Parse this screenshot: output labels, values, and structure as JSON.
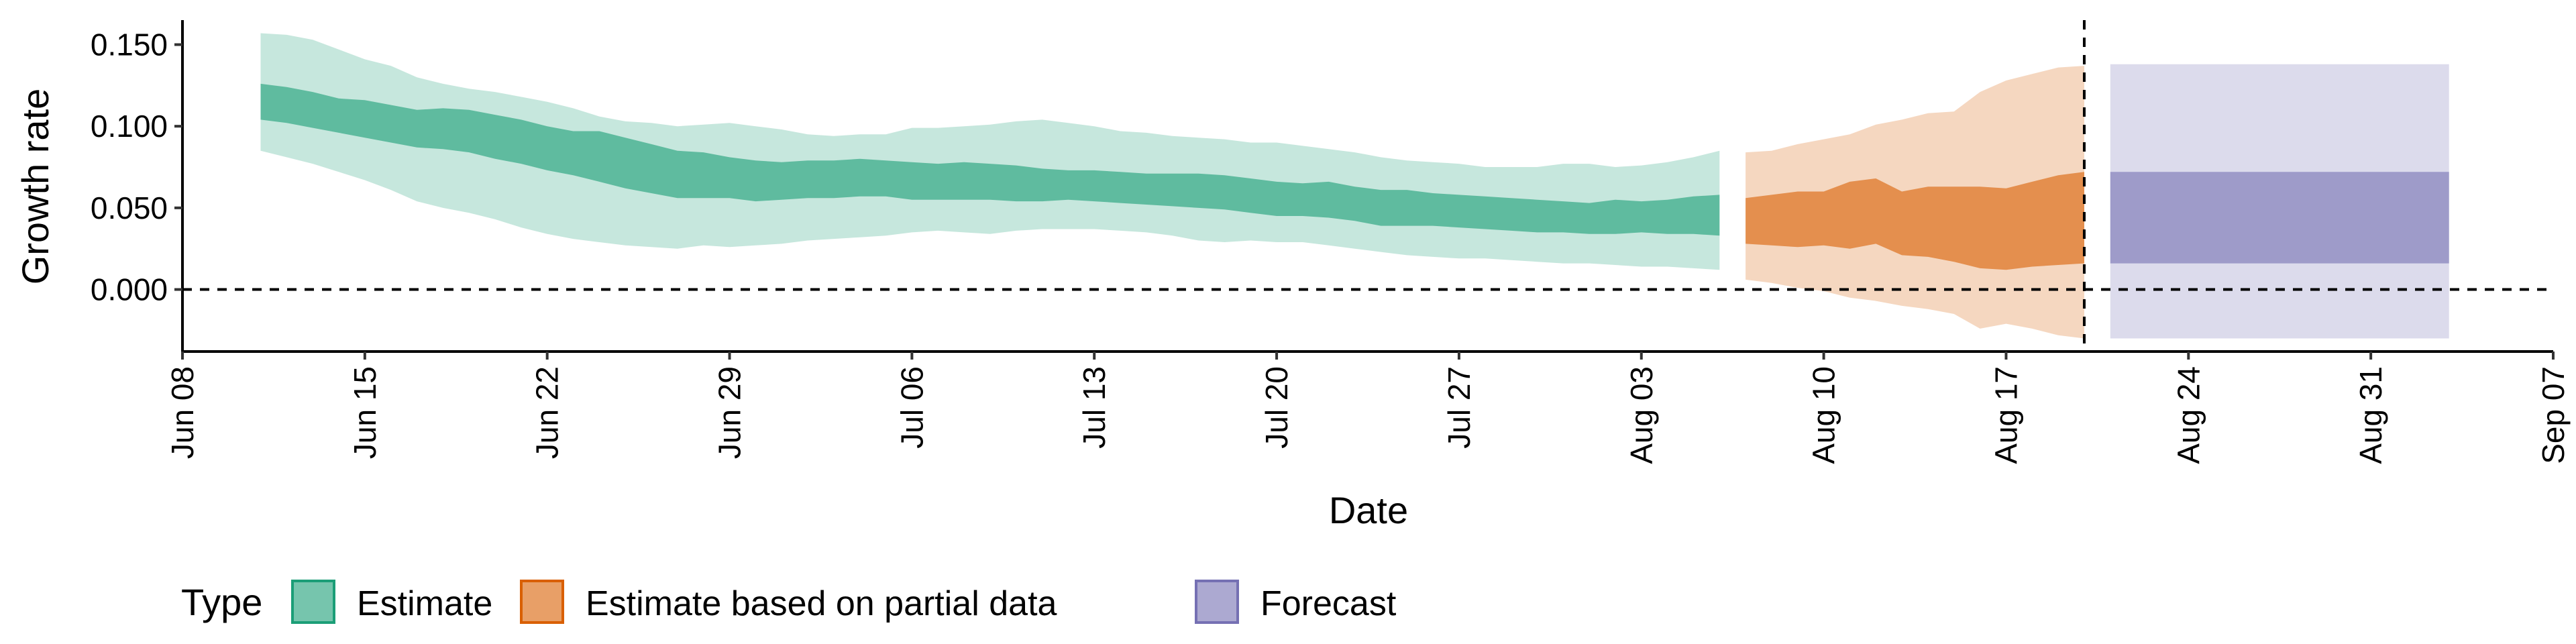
{
  "chart_data": {
    "type": "area",
    "xlabel": "Date",
    "ylabel": "Growth rate",
    "x_ticks": [
      "Jun 08",
      "Jun 15",
      "Jun 22",
      "Jun 29",
      "Jul 06",
      "Jul 13",
      "Jul 20",
      "Jul 27",
      "Aug 03",
      "Aug 10",
      "Aug 17",
      "Aug 24",
      "Aug 31",
      "Sep 07"
    ],
    "y_ticks": [
      "0.000",
      "0.050",
      "0.100",
      "0.150"
    ],
    "xlim_day": [
      0,
      91
    ],
    "ylim": [
      -0.038,
      0.165
    ],
    "reference_lines": {
      "y_zero": 0.0,
      "forecast_date": "Aug 20"
    },
    "legend": {
      "title": "Type",
      "position": "bottom"
    },
    "series": [
      {
        "name": "Estimate",
        "color": "#1b9e77",
        "points": [
          {
            "date": "Jun 11",
            "lower90": 0.085,
            "lower50": 0.104,
            "upper50": 0.126,
            "upper90": 0.157
          },
          {
            "date": "Jun 12",
            "lower90": 0.081,
            "lower50": 0.102,
            "upper50": 0.124,
            "upper90": 0.156
          },
          {
            "date": "Jun 13",
            "lower90": 0.077,
            "lower50": 0.099,
            "upper50": 0.121,
            "upper90": 0.153
          },
          {
            "date": "Jun 14",
            "lower90": 0.072,
            "lower50": 0.096,
            "upper50": 0.117,
            "upper90": 0.147
          },
          {
            "date": "Jun 15",
            "lower90": 0.067,
            "lower50": 0.093,
            "upper50": 0.116,
            "upper90": 0.141
          },
          {
            "date": "Jun 16",
            "lower90": 0.061,
            "lower50": 0.09,
            "upper50": 0.113,
            "upper90": 0.137
          },
          {
            "date": "Jun 17",
            "lower90": 0.054,
            "lower50": 0.087,
            "upper50": 0.11,
            "upper90": 0.13
          },
          {
            "date": "Jun 18",
            "lower90": 0.05,
            "lower50": 0.086,
            "upper50": 0.111,
            "upper90": 0.126
          },
          {
            "date": "Jun 19",
            "lower90": 0.047,
            "lower50": 0.084,
            "upper50": 0.11,
            "upper90": 0.123
          },
          {
            "date": "Jun 20",
            "lower90": 0.043,
            "lower50": 0.08,
            "upper50": 0.107,
            "upper90": 0.121
          },
          {
            "date": "Jun 21",
            "lower90": 0.038,
            "lower50": 0.077,
            "upper50": 0.104,
            "upper90": 0.118
          },
          {
            "date": "Jun 22",
            "lower90": 0.034,
            "lower50": 0.073,
            "upper50": 0.1,
            "upper90": 0.115
          },
          {
            "date": "Jun 23",
            "lower90": 0.031,
            "lower50": 0.07,
            "upper50": 0.097,
            "upper90": 0.111
          },
          {
            "date": "Jun 24",
            "lower90": 0.029,
            "lower50": 0.066,
            "upper50": 0.097,
            "upper90": 0.106
          },
          {
            "date": "Jun 25",
            "lower90": 0.027,
            "lower50": 0.062,
            "upper50": 0.093,
            "upper90": 0.103
          },
          {
            "date": "Jun 26",
            "lower90": 0.026,
            "lower50": 0.059,
            "upper50": 0.089,
            "upper90": 0.102
          },
          {
            "date": "Jun 27",
            "lower90": 0.025,
            "lower50": 0.056,
            "upper50": 0.085,
            "upper90": 0.1
          },
          {
            "date": "Jun 28",
            "lower90": 0.027,
            "lower50": 0.056,
            "upper50": 0.084,
            "upper90": 0.101
          },
          {
            "date": "Jun 29",
            "lower90": 0.026,
            "lower50": 0.056,
            "upper50": 0.081,
            "upper90": 0.102
          },
          {
            "date": "Jun 30",
            "lower90": 0.027,
            "lower50": 0.054,
            "upper50": 0.079,
            "upper90": 0.1
          },
          {
            "date": "Jul 01",
            "lower90": 0.028,
            "lower50": 0.055,
            "upper50": 0.078,
            "upper90": 0.098
          },
          {
            "date": "Jul 02",
            "lower90": 0.03,
            "lower50": 0.056,
            "upper50": 0.079,
            "upper90": 0.095
          },
          {
            "date": "Jul 03",
            "lower90": 0.031,
            "lower50": 0.056,
            "upper50": 0.079,
            "upper90": 0.094
          },
          {
            "date": "Jul 04",
            "lower90": 0.032,
            "lower50": 0.057,
            "upper50": 0.08,
            "upper90": 0.095
          },
          {
            "date": "Jul 05",
            "lower90": 0.033,
            "lower50": 0.057,
            "upper50": 0.079,
            "upper90": 0.095
          },
          {
            "date": "Jul 06",
            "lower90": 0.035,
            "lower50": 0.055,
            "upper50": 0.078,
            "upper90": 0.099
          },
          {
            "date": "Jul 07",
            "lower90": 0.036,
            "lower50": 0.055,
            "upper50": 0.077,
            "upper90": 0.099
          },
          {
            "date": "Jul 08",
            "lower90": 0.035,
            "lower50": 0.055,
            "upper50": 0.078,
            "upper90": 0.1
          },
          {
            "date": "Jul 09",
            "lower90": 0.034,
            "lower50": 0.055,
            "upper50": 0.077,
            "upper90": 0.101
          },
          {
            "date": "Jul 10",
            "lower90": 0.036,
            "lower50": 0.054,
            "upper50": 0.076,
            "upper90": 0.103
          },
          {
            "date": "Jul 11",
            "lower90": 0.037,
            "lower50": 0.054,
            "upper50": 0.074,
            "upper90": 0.104
          },
          {
            "date": "Jul 12",
            "lower90": 0.037,
            "lower50": 0.055,
            "upper50": 0.073,
            "upper90": 0.102
          },
          {
            "date": "Jul 13",
            "lower90": 0.037,
            "lower50": 0.054,
            "upper50": 0.073,
            "upper90": 0.1
          },
          {
            "date": "Jul 14",
            "lower90": 0.036,
            "lower50": 0.053,
            "upper50": 0.072,
            "upper90": 0.097
          },
          {
            "date": "Jul 15",
            "lower90": 0.035,
            "lower50": 0.052,
            "upper50": 0.071,
            "upper90": 0.096
          },
          {
            "date": "Jul 16",
            "lower90": 0.033,
            "lower50": 0.051,
            "upper50": 0.071,
            "upper90": 0.094
          },
          {
            "date": "Jul 17",
            "lower90": 0.03,
            "lower50": 0.05,
            "upper50": 0.071,
            "upper90": 0.093
          },
          {
            "date": "Jul 18",
            "lower90": 0.029,
            "lower50": 0.049,
            "upper50": 0.07,
            "upper90": 0.092
          },
          {
            "date": "Jul 19",
            "lower90": 0.03,
            "lower50": 0.047,
            "upper50": 0.068,
            "upper90": 0.09
          },
          {
            "date": "Jul 20",
            "lower90": 0.029,
            "lower50": 0.045,
            "upper50": 0.066,
            "upper90": 0.09
          },
          {
            "date": "Jul 21",
            "lower90": 0.029,
            "lower50": 0.045,
            "upper50": 0.065,
            "upper90": 0.088
          },
          {
            "date": "Jul 22",
            "lower90": 0.027,
            "lower50": 0.044,
            "upper50": 0.066,
            "upper90": 0.086
          },
          {
            "date": "Jul 23",
            "lower90": 0.025,
            "lower50": 0.042,
            "upper50": 0.063,
            "upper90": 0.084
          },
          {
            "date": "Jul 24",
            "lower90": 0.023,
            "lower50": 0.039,
            "upper50": 0.061,
            "upper90": 0.081
          },
          {
            "date": "Jul 25",
            "lower90": 0.021,
            "lower50": 0.039,
            "upper50": 0.061,
            "upper90": 0.079
          },
          {
            "date": "Jul 26",
            "lower90": 0.02,
            "lower50": 0.039,
            "upper50": 0.059,
            "upper90": 0.078
          },
          {
            "date": "Jul 27",
            "lower90": 0.019,
            "lower50": 0.038,
            "upper50": 0.058,
            "upper90": 0.077
          },
          {
            "date": "Jul 28",
            "lower90": 0.019,
            "lower50": 0.037,
            "upper50": 0.057,
            "upper90": 0.075
          },
          {
            "date": "Jul 29",
            "lower90": 0.018,
            "lower50": 0.036,
            "upper50": 0.056,
            "upper90": 0.075
          },
          {
            "date": "Jul 30",
            "lower90": 0.017,
            "lower50": 0.035,
            "upper50": 0.055,
            "upper90": 0.075
          },
          {
            "date": "Jul 31",
            "lower90": 0.016,
            "lower50": 0.035,
            "upper50": 0.054,
            "upper90": 0.077
          },
          {
            "date": "Aug 01",
            "lower90": 0.016,
            "lower50": 0.034,
            "upper50": 0.053,
            "upper90": 0.077
          },
          {
            "date": "Aug 02",
            "lower90": 0.015,
            "lower50": 0.034,
            "upper50": 0.055,
            "upper90": 0.075
          },
          {
            "date": "Aug 03",
            "lower90": 0.014,
            "lower50": 0.035,
            "upper50": 0.054,
            "upper90": 0.076
          },
          {
            "date": "Aug 04",
            "lower90": 0.014,
            "lower50": 0.034,
            "upper50": 0.055,
            "upper90": 0.078
          },
          {
            "date": "Aug 05",
            "lower90": 0.013,
            "lower50": 0.034,
            "upper50": 0.057,
            "upper90": 0.081
          },
          {
            "date": "Aug 06",
            "lower90": 0.012,
            "lower50": 0.033,
            "upper50": 0.058,
            "upper90": 0.085
          }
        ]
      },
      {
        "name": "Estimate based on partial data",
        "color": "#d95f02",
        "points": [
          {
            "date": "Aug 07",
            "lower90": 0.006,
            "lower50": 0.028,
            "upper50": 0.056,
            "upper90": 0.084
          },
          {
            "date": "Aug 08",
            "lower90": 0.004,
            "lower50": 0.027,
            "upper50": 0.058,
            "upper90": 0.085
          },
          {
            "date": "Aug 09",
            "lower90": 0.001,
            "lower50": 0.026,
            "upper50": 0.06,
            "upper90": 0.089
          },
          {
            "date": "Aug 10",
            "lower90": -0.001,
            "lower50": 0.027,
            "upper50": 0.06,
            "upper90": 0.092
          },
          {
            "date": "Aug 11",
            "lower90": -0.005,
            "lower50": 0.025,
            "upper50": 0.066,
            "upper90": 0.095
          },
          {
            "date": "Aug 12",
            "lower90": -0.007,
            "lower50": 0.028,
            "upper50": 0.068,
            "upper90": 0.101
          },
          {
            "date": "Aug 13",
            "lower90": -0.01,
            "lower50": 0.021,
            "upper50": 0.06,
            "upper90": 0.104
          },
          {
            "date": "Aug 14",
            "lower90": -0.012,
            "lower50": 0.02,
            "upper50": 0.063,
            "upper90": 0.108
          },
          {
            "date": "Aug 15",
            "lower90": -0.015,
            "lower50": 0.017,
            "upper50": 0.063,
            "upper90": 0.109
          },
          {
            "date": "Aug 16",
            "lower90": -0.024,
            "lower50": 0.013,
            "upper50": 0.063,
            "upper90": 0.121
          },
          {
            "date": "Aug 17",
            "lower90": -0.021,
            "lower50": 0.012,
            "upper50": 0.062,
            "upper90": 0.128
          },
          {
            "date": "Aug 18",
            "lower90": -0.024,
            "lower50": 0.014,
            "upper50": 0.066,
            "upper90": 0.132
          },
          {
            "date": "Aug 19",
            "lower90": -0.028,
            "lower50": 0.015,
            "upper50": 0.07,
            "upper90": 0.136
          },
          {
            "date": "Aug 20",
            "lower90": -0.03,
            "lower50": 0.016,
            "upper50": 0.072,
            "upper90": 0.137
          }
        ]
      },
      {
        "name": "Forecast",
        "color": "#7570b3",
        "points": [
          {
            "date": "Aug 21",
            "lower90": -0.03,
            "lower50": 0.016,
            "upper50": 0.072,
            "upper90": 0.138
          },
          {
            "date": "Sep 03",
            "lower90": -0.03,
            "lower50": 0.016,
            "upper50": 0.072,
            "upper90": 0.138
          }
        ]
      }
    ]
  }
}
